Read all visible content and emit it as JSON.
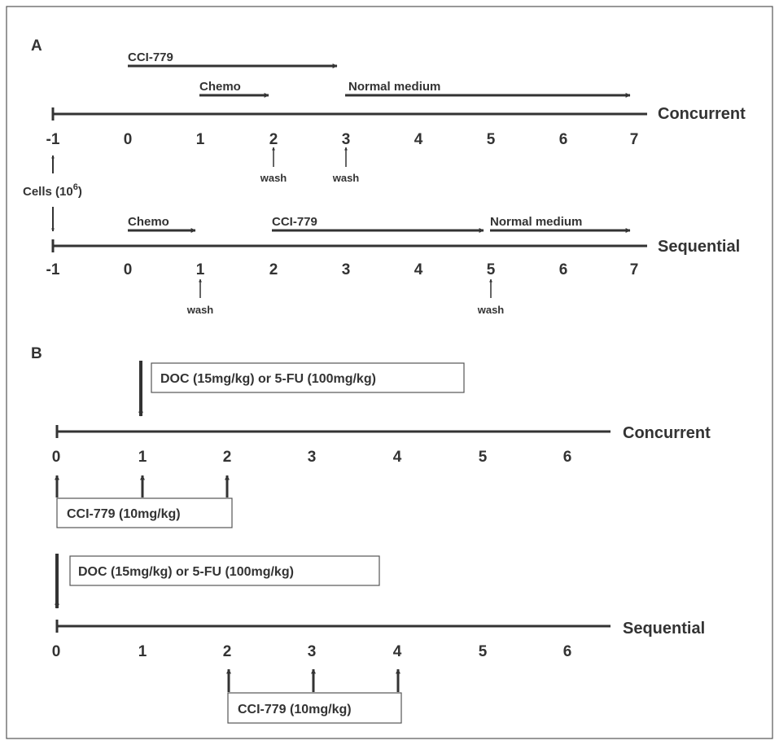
{
  "panelA": {
    "label": "A",
    "concurrent": {
      "mode": "Concurrent",
      "ticks": [
        "-1",
        "0",
        "1",
        "2",
        "3",
        "4",
        "5",
        "6",
        "7"
      ],
      "bars": [
        "CCI-779",
        "Chemo",
        "Normal medium"
      ],
      "wash": [
        "wash",
        "wash"
      ]
    },
    "cells": {
      "text": "Cells (10",
      "exponent": "6",
      "close": ")"
    },
    "sequential": {
      "mode": "Sequential",
      "ticks": [
        "-1",
        "0",
        "1",
        "2",
        "3",
        "4",
        "5",
        "6",
        "7"
      ],
      "bars": [
        "Chemo",
        "CCI-779",
        "Normal medium"
      ],
      "wash": [
        "wash",
        "wash"
      ]
    }
  },
  "panelB": {
    "label": "B",
    "concurrent": {
      "mode": "Concurrent",
      "ticks": [
        "0",
        "1",
        "2",
        "3",
        "4",
        "5",
        "6"
      ],
      "chemo_box": "DOC (15mg/kg) or 5-FU (100mg/kg)",
      "cci_box": "CCI-779 (10mg/kg)"
    },
    "sequential": {
      "mode": "Sequential",
      "ticks": [
        "0",
        "1",
        "2",
        "3",
        "4",
        "5",
        "6"
      ],
      "chemo_box": "DOC (15mg/kg) or 5-FU (100mg/kg)",
      "cci_box": "CCI-779 (10mg/kg)"
    }
  }
}
